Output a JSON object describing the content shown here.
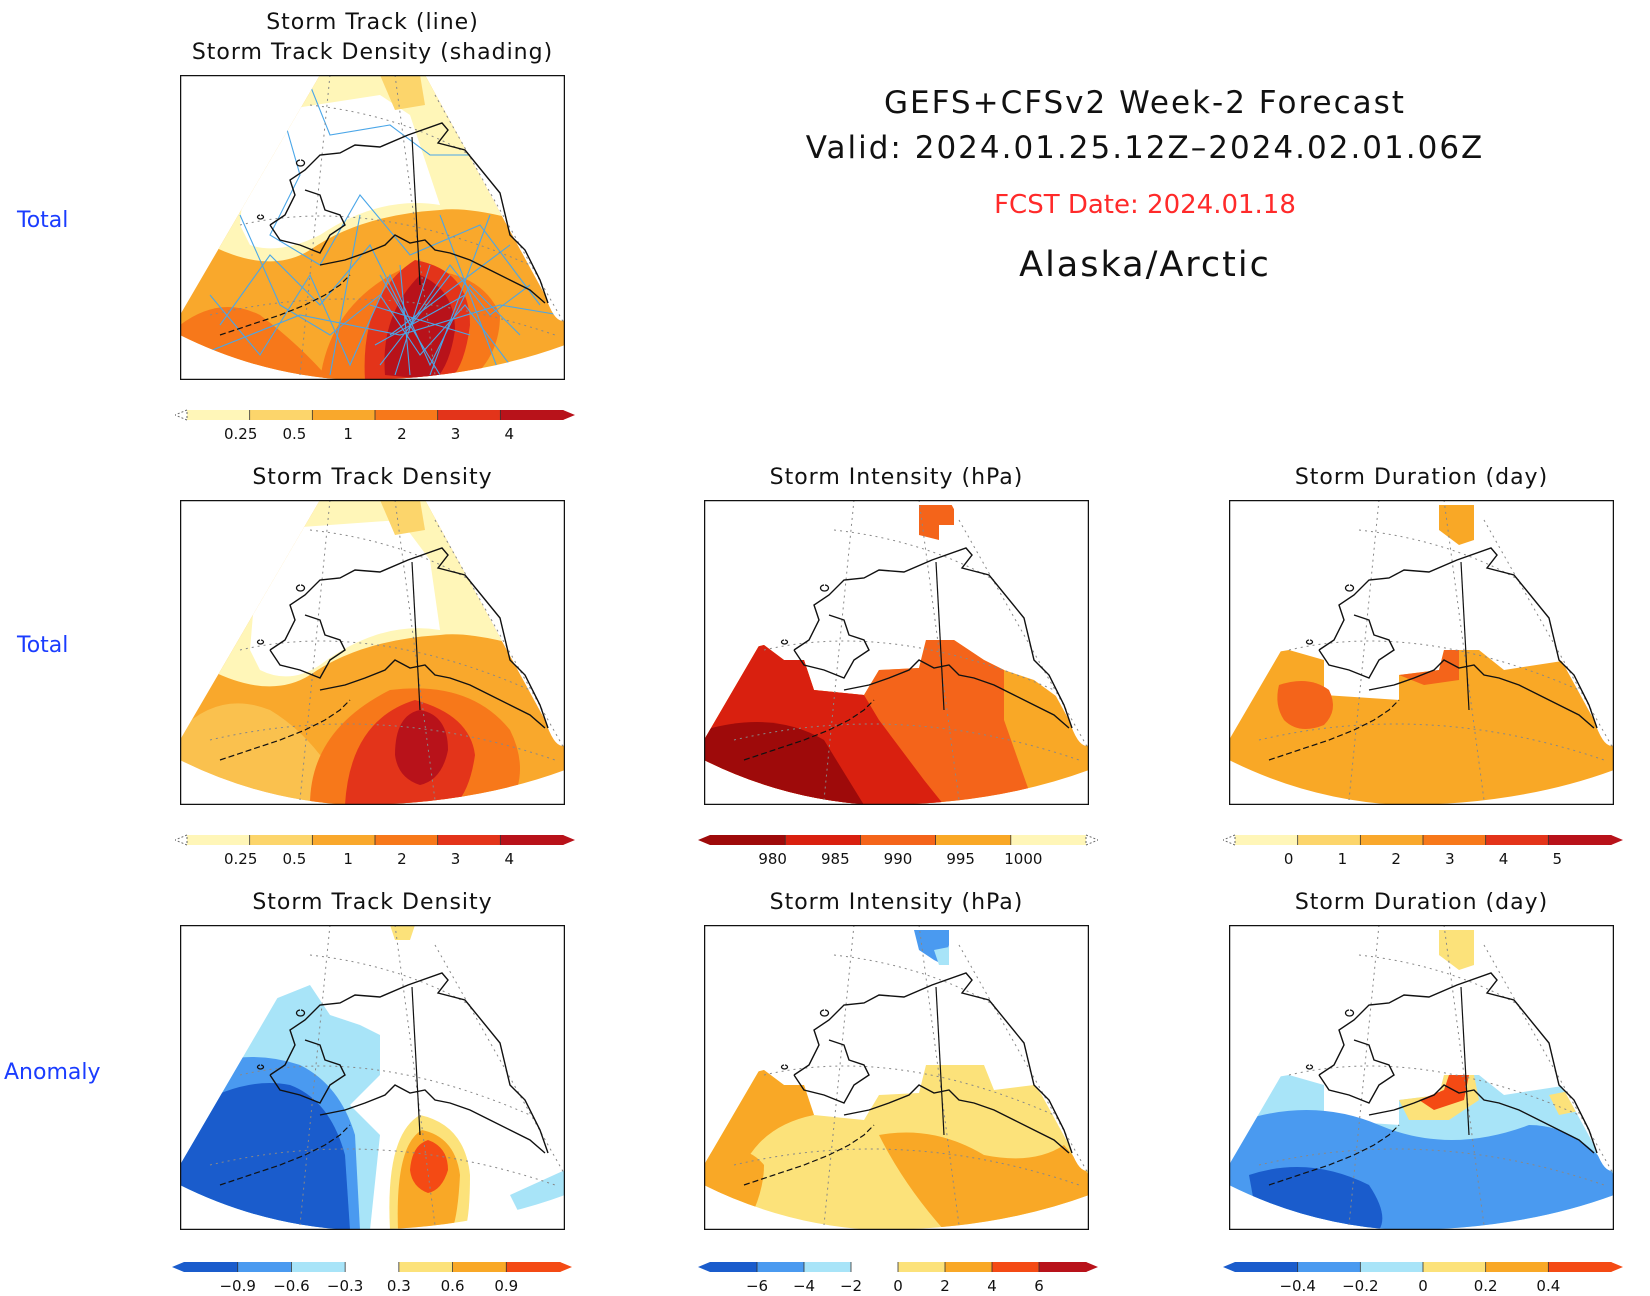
{
  "header": {
    "title": "GEFS+CFSv2 Week-2 Forecast",
    "valid": "Valid: 2024.01.25.12Z–2024.02.01.06Z",
    "fcst_date": "FCST Date: 2024.01.18",
    "region": "Alaska/Arctic",
    "fcst_color": "#ff2a2a"
  },
  "row_labels": {
    "r1": "Total",
    "r2": "Total",
    "r3": "Anomaly"
  },
  "panels": {
    "p1": {
      "title_line1": "Storm Track (line)",
      "title_line2": "Storm Track Density (shading)"
    },
    "p2": {
      "title": "Storm Track Density"
    },
    "p3": {
      "title": "Storm Intensity (hPa)"
    },
    "p4": {
      "title": "Storm Duration (day)"
    },
    "p5": {
      "title": "Storm Track Density"
    },
    "p6": {
      "title": "Storm Intensity (hPa)"
    },
    "p7": {
      "title": "Storm Duration (day)"
    }
  },
  "colorbars": {
    "density_total": {
      "ticks": [
        "0.25",
        "0.5",
        "1",
        "2",
        "3",
        "4"
      ],
      "colors": [
        "#fff6b8",
        "#fcd56b",
        "#f9a82c",
        "#f7781a",
        "#e3341a",
        "#b8121a"
      ]
    },
    "intensity_total": {
      "ticks": [
        "980",
        "985",
        "990",
        "995",
        "1000"
      ],
      "colors": [
        "#9e0a0a",
        "#d9200f",
        "#f4641a",
        "#f9a826",
        "#fff6b8"
      ]
    },
    "duration_total": {
      "ticks": [
        "0",
        "1",
        "2",
        "3",
        "4",
        "5"
      ],
      "colors": [
        "#fff6b8",
        "#fcd56b",
        "#f9a82c",
        "#f7781a",
        "#e3341a",
        "#b8121a"
      ]
    },
    "density_anom": {
      "ticks": [
        "−0.9",
        "−0.6",
        "−0.3",
        "0.3",
        "0.6",
        "0.9"
      ],
      "colors": [
        "#1a5ccc",
        "#4a9af0",
        "#a8e4f8",
        "#ffffff",
        "#fce27a",
        "#f9a826",
        "#f44a14"
      ]
    },
    "intensity_anom": {
      "ticks": [
        "−6",
        "−4",
        "−2",
        "0",
        "2",
        "4",
        "6"
      ],
      "colors": [
        "#1a5ccc",
        "#4a9af0",
        "#a8e4f8",
        "#ffffff",
        "#fce27a",
        "#f9a826",
        "#f44a14",
        "#b8121a"
      ]
    },
    "duration_anom": {
      "ticks": [
        "−0.4",
        "−0.2",
        "0",
        "0.2",
        "0.4"
      ],
      "colors": [
        "#1a5ccc",
        "#4a9af0",
        "#a8e4f8",
        "#fce27a",
        "#f9a826",
        "#f44a14"
      ]
    }
  }
}
